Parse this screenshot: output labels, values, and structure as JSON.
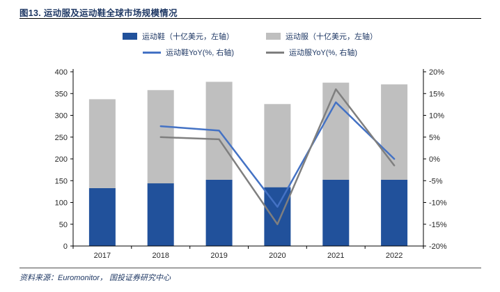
{
  "title": "图13. 运动服及运动鞋全球市场规模情况",
  "source": "资料来源：Euromonitor， 国投证券研究中心",
  "chart_data": {
    "type": "combo-stacked-bar-line",
    "categories": [
      "2017",
      "2018",
      "2019",
      "2020",
      "2021",
      "2022"
    ],
    "series": [
      {
        "name": "运动鞋（十亿美元，左轴）",
        "type": "bar",
        "axis": "left",
        "color": "#21519b",
        "values": [
          133,
          144,
          152,
          135,
          152,
          152
        ]
      },
      {
        "name": "运动服（十亿美元，左轴）",
        "type": "bar",
        "axis": "left",
        "color": "#bfbfbf",
        "values": [
          204,
          214,
          225,
          191,
          223,
          219
        ]
      },
      {
        "name": "运动鞋YoY(%, 右轴)",
        "type": "line",
        "axis": "right",
        "color": "#4472c4",
        "values": [
          null,
          7.5,
          6.5,
          -11,
          13,
          0
        ]
      },
      {
        "name": "运动服YoY(%, 右轴)",
        "type": "line",
        "axis": "right",
        "color": "#7f7f7f",
        "values": [
          null,
          5,
          4.5,
          -15,
          16,
          -1.5
        ]
      }
    ],
    "left_axis": {
      "min": 0,
      "max": 400,
      "step": 50,
      "ticks": [
        "0",
        "50",
        "100",
        "150",
        "200",
        "250",
        "300",
        "350",
        "400"
      ]
    },
    "right_axis": {
      "min": -20,
      "max": 20,
      "step": 5,
      "ticks": [
        "-20%",
        "-15%",
        "-10%",
        "-5%",
        "0%",
        "5%",
        "10%",
        "15%",
        "20%"
      ]
    },
    "grid": false,
    "legend_position": "top",
    "ylabel_left": "十亿美元",
    "ylabel_right": "%"
  }
}
